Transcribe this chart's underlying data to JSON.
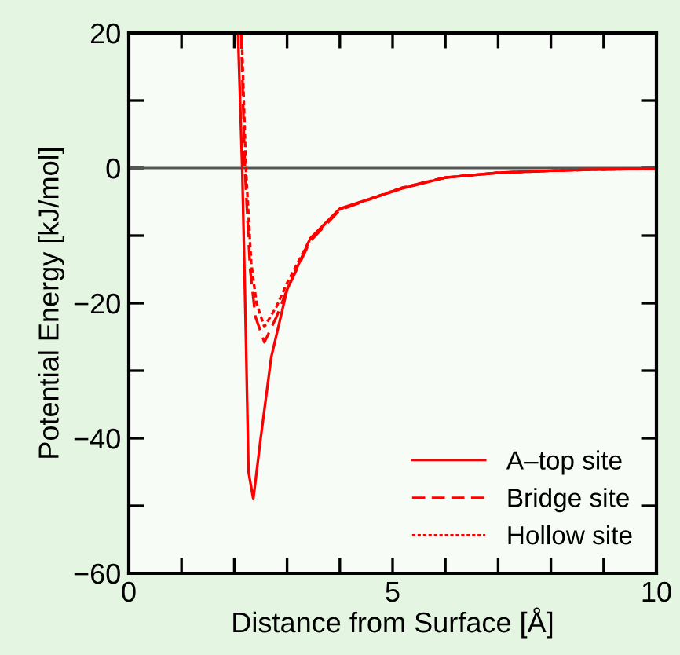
{
  "chart_data": {
    "type": "line",
    "xlabel": "Distance from Surface [Å]",
    "ylabel": "Potential Energy [kJ/mol]",
    "xlim": [
      0,
      10
    ],
    "ylim": [
      -60,
      20
    ],
    "xticks": [
      0,
      {
        "value": 1,
        "label": null
      },
      {
        "value": 2,
        "label": null
      },
      {
        "value": 3,
        "label": null
      },
      {
        "value": 4,
        "label": null
      },
      5,
      {
        "value": 6,
        "label": null
      },
      {
        "value": 7,
        "label": null
      },
      {
        "value": 8,
        "label": null
      },
      {
        "value": 9,
        "label": null
      },
      10
    ],
    "yticks": [
      -60,
      {
        "value": -50,
        "label": null
      },
      -40,
      {
        "value": -30,
        "label": null
      },
      -20,
      {
        "value": -10,
        "label": null
      },
      0,
      {
        "value": 10,
        "label": null
      },
      20
    ],
    "grid": false,
    "legend": "bottom right",
    "ref_lines": [
      {
        "axis": "y",
        "value": 0,
        "color": "#555555"
      }
    ],
    "series": [
      {
        "name": "A–top site",
        "color": "#ff0000",
        "line_style": "solid",
        "x": [
          2.07,
          2.15,
          2.22,
          2.27,
          2.36,
          2.5,
          2.7,
          3.0,
          3.44,
          4.0,
          5.19,
          6,
          7,
          8,
          9,
          10
        ],
        "values": [
          20,
          0,
          -25,
          -45,
          -49,
          -40,
          -28,
          -18,
          -10.4,
          -6,
          -3.0,
          -1.4,
          -0.7,
          -0.4,
          -0.2,
          -0.1
        ]
      },
      {
        "name": "Bridge site",
        "color": "#ff0000",
        "line_style": "dashed",
        "x": [
          2.13,
          2.2,
          2.3,
          2.4,
          2.57,
          2.8,
          3.0,
          3.44,
          4.0,
          5.19,
          6,
          7,
          8,
          9,
          10
        ],
        "values": [
          20,
          0,
          -15,
          -22,
          -25.8,
          -22,
          -18,
          -10.8,
          -6.2,
          -2.9,
          -1.4,
          -0.7,
          -0.4,
          -0.2,
          -0.1
        ]
      },
      {
        "name": "Hollow site",
        "color": "#ff0000",
        "line_style": "dotted",
        "x": [
          2.14,
          2.22,
          2.32,
          2.42,
          2.57,
          2.8,
          3.0,
          3.44,
          4.0,
          5.19,
          6,
          7,
          8,
          9,
          10
        ],
        "values": [
          20,
          0,
          -14,
          -20,
          -23.5,
          -20.5,
          -17,
          -10.5,
          -6.1,
          -2.9,
          -1.4,
          -0.7,
          -0.4,
          -0.2,
          -0.1
        ]
      }
    ]
  }
}
